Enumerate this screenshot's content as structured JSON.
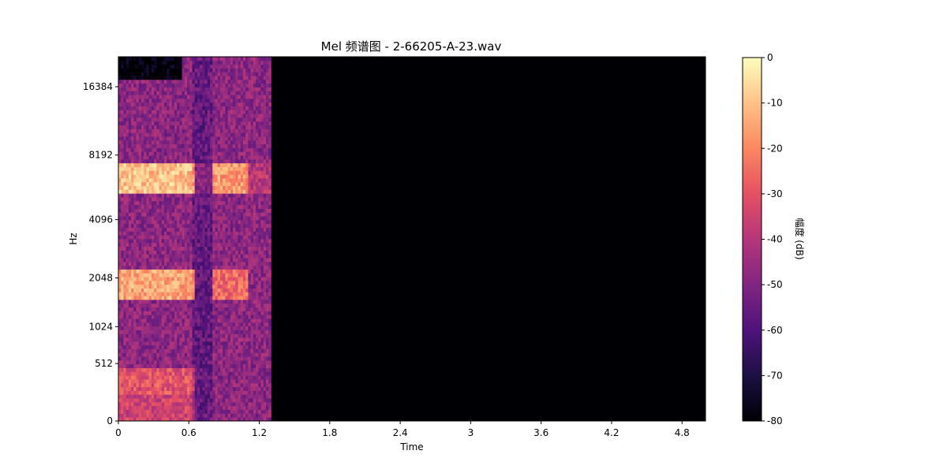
{
  "chart_data": {
    "type": "heatmap",
    "title": "Mel 频谱图 - 2-66205-A-23.wav",
    "xlabel": "Time",
    "ylabel": "Hz",
    "x_ticks": [
      "0",
      "0.6",
      "1.2",
      "1.8",
      "2.4",
      "3",
      "3.6",
      "4.2",
      "4.8"
    ],
    "x_tick_values": [
      0,
      0.6,
      1.2,
      1.8,
      2.4,
      3.0,
      3.6,
      4.2,
      4.8
    ],
    "xlim": [
      0,
      5.0
    ],
    "y_scale": "mel",
    "y_ticks": [
      "0",
      "512",
      "1024",
      "2048",
      "4096",
      "8192",
      "16384"
    ],
    "y_tick_values": [
      0,
      512,
      1024,
      2048,
      4096,
      8192,
      16384
    ],
    "ylim": [
      0,
      22050
    ],
    "colormap": "magma",
    "colorbar": {
      "label": "幅度 (dB)",
      "ticks": [
        "0",
        "-10",
        "-20",
        "-30",
        "-40",
        "-50",
        "-60",
        "-70",
        "-80"
      ],
      "tick_values": [
        0,
        -10,
        -20,
        -30,
        -40,
        -50,
        -60,
        -70,
        -80
      ],
      "range": [
        -80,
        0
      ]
    },
    "signal_end_time": 1.3,
    "silence_db": -80,
    "energy_bands": [
      {
        "hz_low": 0,
        "hz_high": 200,
        "db": -35
      },
      {
        "hz_low": 200,
        "hz_high": 450,
        "db": -30
      },
      {
        "hz_low": 1500,
        "hz_high": 2300,
        "db": -15
      },
      {
        "hz_low": 5500,
        "hz_high": 7500,
        "db": -10
      }
    ]
  }
}
